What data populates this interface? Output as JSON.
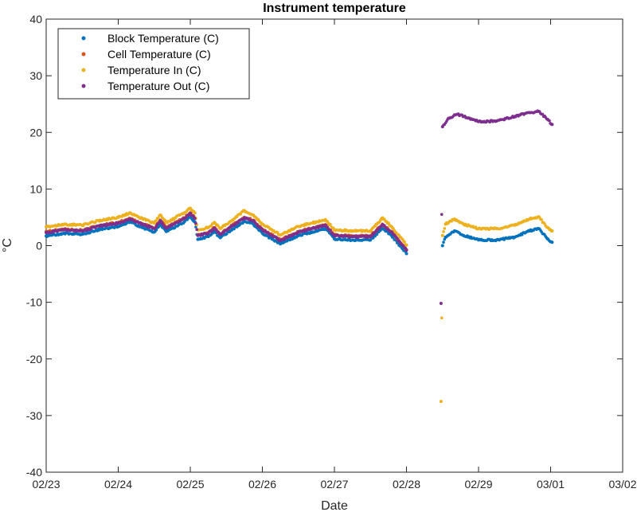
{
  "chart_data": {
    "type": "scatter",
    "title": "Instrument temperature",
    "xlabel": "Date",
    "ylabel": "°C",
    "ylim": [
      -40,
      40
    ],
    "yticks": [
      -40,
      -30,
      -20,
      -10,
      0,
      10,
      20,
      30,
      40
    ],
    "x_ticks": [
      "02/23",
      "02/24",
      "02/25",
      "02/26",
      "02/27",
      "02/28",
      "02/29",
      "03/01",
      "03/02"
    ],
    "grid": false,
    "legend_position": "top-left",
    "series": [
      {
        "name": "Block Temperature (C)",
        "color": "#0072BD",
        "points": [
          [
            "02/23 00:00",
            1.7
          ],
          [
            "02/23 06:00",
            2.2
          ],
          [
            "02/23 12:00",
            2.0
          ],
          [
            "02/23 18:00",
            2.9
          ],
          [
            "02/24 00:00",
            3.4
          ],
          [
            "02/24 04:00",
            4.2
          ],
          [
            "02/24 08:00",
            3.2
          ],
          [
            "02/24 12:00",
            2.4
          ],
          [
            "02/24 14:00",
            3.8
          ],
          [
            "02/24 16:00",
            2.5
          ],
          [
            "02/24 22:00",
            4.2
          ],
          [
            "02/25 00:00",
            5.1
          ],
          [
            "02/25 01:30",
            4.2
          ],
          [
            "02/25 02:30",
            1.1
          ],
          [
            "02/25 06:00",
            1.6
          ],
          [
            "02/25 08:00",
            2.5
          ],
          [
            "02/25 10:00",
            1.4
          ],
          [
            "02/25 14:00",
            2.9
          ],
          [
            "02/25 18:00",
            4.3
          ],
          [
            "02/25 21:00",
            3.8
          ],
          [
            "02/26 00:00",
            2.2
          ],
          [
            "02/26 06:00",
            0.3
          ],
          [
            "02/26 12:00",
            1.8
          ],
          [
            "02/26 18:00",
            2.6
          ],
          [
            "02/26 21:00",
            3.0
          ],
          [
            "02/27 00:00",
            1.2
          ],
          [
            "02/27 06:00",
            1.0
          ],
          [
            "02/27 12:00",
            1.0
          ],
          [
            "02/27 16:00",
            3.1
          ],
          [
            "02/27 19:00",
            1.8
          ],
          [
            "02/28 00:00",
            -1.4
          ],
          [
            "02/28 12:00",
            0.0
          ],
          [
            "02/28 13:00",
            1.5
          ],
          [
            "02/28 16:00",
            2.6
          ],
          [
            "02/28 19:00",
            1.8
          ],
          [
            "02/29 00:00",
            1.0
          ],
          [
            "02/29 06:00",
            1.0
          ],
          [
            "02/29 12:00",
            1.5
          ],
          [
            "02/29 17:00",
            2.6
          ],
          [
            "02/29 20:00",
            3.0
          ],
          [
            "02/29 23:00",
            1.2
          ],
          [
            "03/01 00:30",
            0.6
          ]
        ]
      },
      {
        "name": "Cell Temperature (C)",
        "color": "#D95319",
        "points": [
          [
            "02/23 00:00",
            2.5
          ],
          [
            "02/23 06:00",
            2.9
          ],
          [
            "02/23 12:00",
            2.7
          ],
          [
            "02/23 18:00",
            3.6
          ],
          [
            "02/24 00:00",
            4.1
          ],
          [
            "02/24 04:00",
            4.8
          ],
          [
            "02/24 08:00",
            3.9
          ],
          [
            "02/24 12:00",
            3.1
          ],
          [
            "02/24 14:00",
            4.5
          ],
          [
            "02/24 16:00",
            3.2
          ],
          [
            "02/24 22:00",
            4.9
          ],
          [
            "02/25 00:00",
            5.8
          ],
          [
            "02/25 01:30",
            4.9
          ],
          [
            "02/25 02:30",
            1.9
          ],
          [
            "02/25 06:00",
            2.3
          ],
          [
            "02/25 08:00",
            3.2
          ],
          [
            "02/25 10:00",
            2.1
          ],
          [
            "02/25 14:00",
            3.6
          ],
          [
            "02/25 18:00",
            5.0
          ],
          [
            "02/25 21:00",
            4.5
          ],
          [
            "02/26 00:00",
            2.9
          ],
          [
            "02/26 06:00",
            1.0
          ],
          [
            "02/26 12:00",
            2.5
          ],
          [
            "02/26 18:00",
            3.3
          ],
          [
            "02/26 21:00",
            3.7
          ],
          [
            "02/27 00:00",
            1.9
          ],
          [
            "02/27 06:00",
            1.7
          ],
          [
            "02/27 12:00",
            1.7
          ],
          [
            "02/27 16:00",
            3.8
          ],
          [
            "02/27 19:00",
            2.5
          ],
          [
            "02/28 00:00",
            -0.7
          ]
        ]
      },
      {
        "name": "Temperature In (C)",
        "color": "#EDB120",
        "points": [
          [
            "02/23 00:00",
            3.3
          ],
          [
            "02/23 06:00",
            3.8
          ],
          [
            "02/23 12:00",
            3.6
          ],
          [
            "02/23 18:00",
            4.5
          ],
          [
            "02/24 00:00",
            5.0
          ],
          [
            "02/24 04:00",
            5.8
          ],
          [
            "02/24 08:00",
            4.8
          ],
          [
            "02/24 12:00",
            4.0
          ],
          [
            "02/24 14:00",
            5.4
          ],
          [
            "02/24 16:00",
            4.1
          ],
          [
            "02/24 22:00",
            5.8
          ],
          [
            "02/25 00:00",
            6.6
          ],
          [
            "02/25 01:30",
            5.8
          ],
          [
            "02/25 02:30",
            2.8
          ],
          [
            "02/25 06:00",
            3.2
          ],
          [
            "02/25 08:00",
            4.1
          ],
          [
            "02/25 10:00",
            3.0
          ],
          [
            "02/25 14:00",
            4.5
          ],
          [
            "02/25 18:00",
            6.2
          ],
          [
            "02/25 21:00",
            5.4
          ],
          [
            "02/26 00:00",
            3.8
          ],
          [
            "02/26 06:00",
            1.9
          ],
          [
            "02/26 12:00",
            3.4
          ],
          [
            "02/26 18:00",
            4.2
          ],
          [
            "02/26 21:00",
            4.6
          ],
          [
            "02/27 00:00",
            2.8
          ],
          [
            "02/27 06:00",
            2.6
          ],
          [
            "02/27 12:00",
            2.6
          ],
          [
            "02/27 16:00",
            4.9
          ],
          [
            "02/27 19:00",
            3.4
          ],
          [
            "02/28 00:00",
            0.1
          ],
          [
            "02/28 11:30",
            -27.5
          ],
          [
            "02/28 12:00",
            1.8
          ],
          [
            "02/28 13:00",
            3.8
          ],
          [
            "02/28 16:00",
            4.7
          ],
          [
            "02/28 19:00",
            3.8
          ],
          [
            "02/29 00:00",
            3.0
          ],
          [
            "02/29 06:00",
            3.0
          ],
          [
            "02/29 12:00",
            3.6
          ],
          [
            "02/29 17:00",
            4.7
          ],
          [
            "02/29 20:00",
            5.1
          ],
          [
            "02/29 23:00",
            3.2
          ],
          [
            "03/01 00:30",
            2.6
          ]
        ]
      },
      {
        "name": "Temperature Out (C)",
        "color": "#7E2F8E",
        "points": [
          [
            "02/23 00:00",
            2.3
          ],
          [
            "02/23 06:00",
            2.8
          ],
          [
            "02/23 12:00",
            2.6
          ],
          [
            "02/23 18:00",
            3.5
          ],
          [
            "02/24 00:00",
            4.0
          ],
          [
            "02/24 04:00",
            4.7
          ],
          [
            "02/24 08:00",
            3.8
          ],
          [
            "02/24 12:00",
            3.0
          ],
          [
            "02/24 14:00",
            4.4
          ],
          [
            "02/24 16:00",
            3.1
          ],
          [
            "02/24 22:00",
            4.8
          ],
          [
            "02/25 00:00",
            5.7
          ],
          [
            "02/25 01:30",
            4.8
          ],
          [
            "02/25 02:30",
            1.8
          ],
          [
            "02/25 06:00",
            2.2
          ],
          [
            "02/25 08:00",
            3.1
          ],
          [
            "02/25 10:00",
            2.0
          ],
          [
            "02/25 14:00",
            3.5
          ],
          [
            "02/25 18:00",
            4.9
          ],
          [
            "02/25 21:00",
            4.4
          ],
          [
            "02/26 00:00",
            2.8
          ],
          [
            "02/26 06:00",
            0.9
          ],
          [
            "02/26 12:00",
            2.4
          ],
          [
            "02/26 18:00",
            3.2
          ],
          [
            "02/26 21:00",
            3.6
          ],
          [
            "02/27 00:00",
            1.8
          ],
          [
            "02/27 06:00",
            1.6
          ],
          [
            "02/27 12:00",
            1.6
          ],
          [
            "02/27 16:00",
            3.7
          ],
          [
            "02/27 19:00",
            2.4
          ],
          [
            "02/28 00:00",
            -0.8
          ],
          [
            "02/28 11:30",
            -10.2
          ],
          [
            "02/28 12:00",
            21.0
          ],
          [
            "02/28 14:00",
            22.5
          ],
          [
            "02/28 17:00",
            23.2
          ],
          [
            "02/28 21:00",
            22.5
          ],
          [
            "02/29 00:00",
            21.9
          ],
          [
            "02/29 06:00",
            22.0
          ],
          [
            "02/29 12:00",
            22.8
          ],
          [
            "02/29 17:00",
            23.5
          ],
          [
            "02/29 20:00",
            23.7
          ],
          [
            "02/29 23:00",
            22.3
          ],
          [
            "03/01 00:30",
            21.4
          ]
        ]
      }
    ]
  }
}
